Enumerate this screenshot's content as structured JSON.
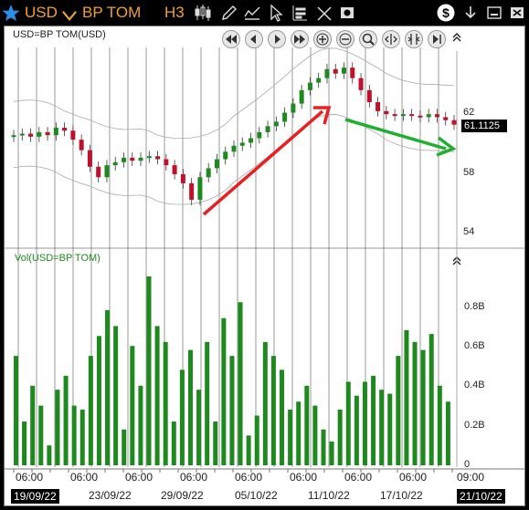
{
  "toolbar": {
    "symbol": "USD",
    "instrument": "BP TOM",
    "timeframe": "H3",
    "colors": {
      "bg": "#000000",
      "text": "#f0a030",
      "star": "#2a8de8"
    }
  },
  "price_pane": {
    "title": "USD=BP TOM(USD)",
    "last_price": "61.1125",
    "y_ticks": [
      "62",
      "58",
      "54"
    ]
  },
  "volume_pane": {
    "title": "Vol(USD=BP TOM)",
    "y_ticks": [
      "0.8B",
      "0.6B",
      "0.4B",
      "0.2B",
      "0"
    ]
  },
  "x_axis": {
    "times": [
      "06:00",
      "06:00",
      "06:00",
      "06:00",
      "06:00",
      "06:00",
      "06:00",
      "06:00",
      "09:00"
    ],
    "dates": [
      "19/09/22",
      "23/09/22",
      "29/09/22",
      "05/10/22",
      "11/10/22",
      "17/10/22",
      "21/10/22"
    ]
  },
  "icons": [
    "star-icon",
    "chevron-down-icon",
    "candlestick-icon",
    "pencil-icon",
    "crosshair-icon",
    "cursor-icon",
    "indicator-icon",
    "erase-icon",
    "camera-icon",
    "dollar-icon",
    "download-icon",
    "minimize-icon",
    "close-icon",
    "pan-first-icon",
    "pan-left-icon",
    "pan-right-icon",
    "pan-last-icon",
    "zoom-in-icon",
    "zoom-out-icon",
    "zoom-box-icon",
    "fit-icon",
    "fit-vertical-icon",
    "end-icon"
  ],
  "chart_data": {
    "type": "candlestick",
    "series": [
      {
        "name": "USD=BP TOM(USD)",
        "close": [
          60.4,
          60.5,
          60.3,
          60.6,
          60.4,
          60.9,
          60.7,
          60.1,
          59.4,
          58.3,
          57.6,
          58.4,
          58.6,
          58.9,
          58.7,
          58.9,
          59.0,
          58.8,
          58.4,
          57.8,
          57.2,
          56.1,
          57.6,
          58.2,
          58.8,
          59.3,
          59.7,
          59.9,
          60.2,
          60.6,
          61.0,
          61.3,
          61.9,
          62.5,
          63.4,
          63.9,
          64.2,
          64.8,
          64.5,
          64.9,
          64.2,
          63.4,
          62.6,
          62.0,
          61.8,
          61.7,
          61.8,
          61.7,
          61.6,
          61.8,
          61.6,
          61.4,
          61.1
        ]
      },
      {
        "name": "Vol(USD=BP TOM)",
        "values": [
          0.55,
          0.22,
          0.4,
          0.3,
          0.1,
          0.38,
          0.45,
          0.3,
          0.28,
          0.55,
          0.65,
          0.78,
          0.7,
          0.18,
          0.6,
          0.4,
          0.95,
          0.7,
          0.62,
          0.22,
          0.48,
          0.58,
          0.38,
          0.62,
          0.22,
          0.74,
          0.55,
          0.82,
          0.15,
          0.25,
          0.62,
          0.55,
          0.48,
          0.28,
          0.32,
          0.4,
          0.3,
          0.18,
          0.12,
          0.28,
          0.42,
          0.35,
          0.42,
          0.45,
          0.38,
          0.36,
          0.55,
          0.68,
          0.62,
          0.58,
          0.66,
          0.4,
          0.32
        ]
      }
    ],
    "ylim_price": [
      53,
      66
    ],
    "ylim_volume": [
      0,
      1.0
    ],
    "grid": "vertical",
    "annotations": [
      "red arrow up",
      "green arrow down"
    ]
  }
}
